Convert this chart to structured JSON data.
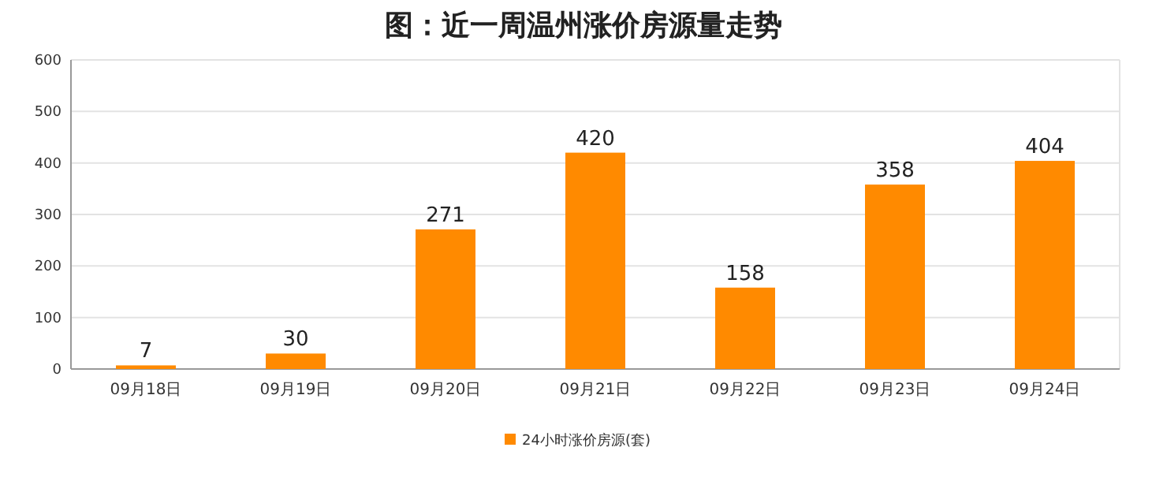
{
  "chart_data": {
    "type": "bar",
    "title": "图：近一周温州涨价房源量走势",
    "categories": [
      "09月18日",
      "09月19日",
      "09月20日",
      "09月21日",
      "09月22日",
      "09月23日",
      "09月24日"
    ],
    "series": [
      {
        "name": "24小时涨价房源(套)",
        "color": "#ff8a00",
        "values": [
          7,
          30,
          271,
          420,
          158,
          358,
          404
        ]
      }
    ],
    "ylim": [
      0,
      600
    ],
    "yticks": [
      0,
      100,
      200,
      300,
      400,
      500,
      600
    ],
    "grid": "y",
    "legend": "bottom",
    "data_labels": true
  }
}
